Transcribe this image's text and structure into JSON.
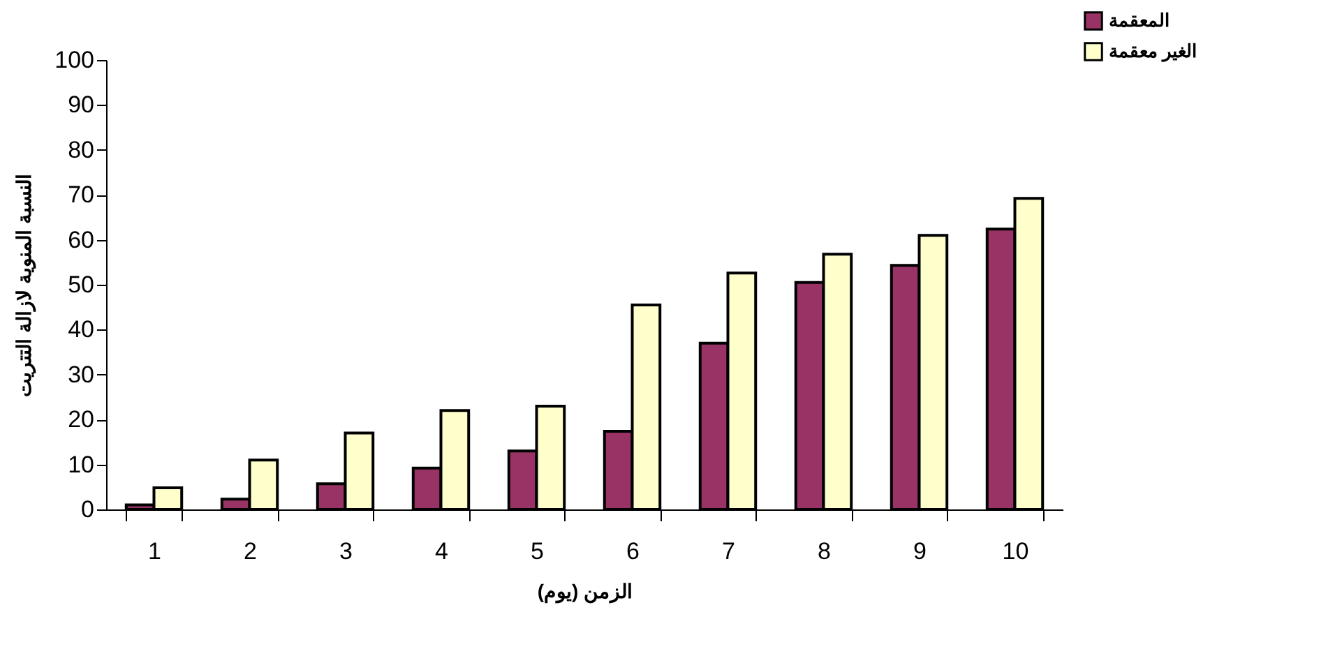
{
  "chart_data": {
    "type": "bar",
    "xlabel": "الزمن (يوم)",
    "ylabel": "النسبة المنوية لازالة التتريت",
    "categories": [
      "1",
      "2",
      "3",
      "4",
      "5",
      "6",
      "7",
      "8",
      "9",
      "10"
    ],
    "series": [
      {
        "name": "المعقمة",
        "color": "#993366",
        "values": [
          1,
          2.3,
          5.7,
          9.2,
          13,
          17.4,
          37,
          50.5,
          54.3,
          62.4
        ]
      },
      {
        "name": "الغير معقمة",
        "color": "#ffffcc",
        "values": [
          4.8,
          11,
          17,
          22,
          23,
          45.5,
          52.6,
          56.8,
          61,
          69.2
        ]
      }
    ],
    "ylim": [
      0,
      100
    ],
    "yticks": [
      0,
      10,
      20,
      30,
      40,
      50,
      60,
      70,
      80,
      90,
      100
    ],
    "grid": false,
    "legend": "top right"
  }
}
